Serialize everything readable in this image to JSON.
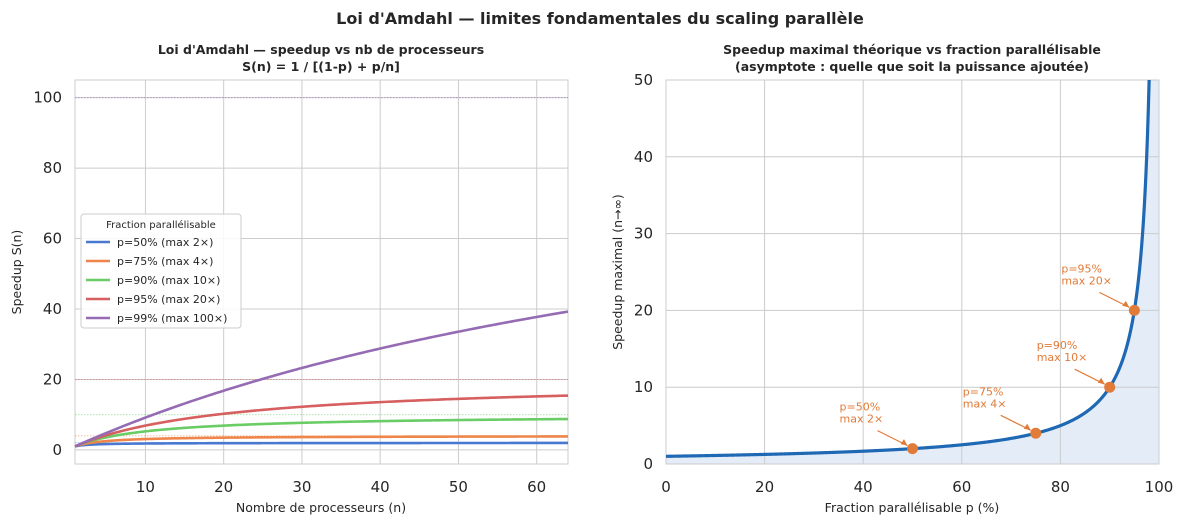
{
  "suptitle": "Loi d'Amdahl — limites fondamentales du scaling parallèle",
  "chart_data": [
    {
      "type": "line",
      "title_line1": "Loi d'Amdahl — speedup vs nb de processeurs",
      "title_line2": "S(n) = 1 / [(1-p) + p/n]",
      "xlabel": "Nombre de processeurs (n)",
      "ylabel": "Speedup S(n)",
      "xlim": [
        1,
        64
      ],
      "ylim": [
        -4,
        105
      ],
      "xticks": [
        10,
        20,
        30,
        40,
        50,
        60
      ],
      "yticks": [
        0,
        20,
        40,
        60,
        80,
        100
      ],
      "legend_title": "Fraction parallélisable",
      "legend_position": "center-left",
      "series": [
        {
          "name": "p=50% (max 2×)",
          "p": 0.5,
          "asymptote": 2,
          "color": "#4878d0"
        },
        {
          "name": "p=75% (max 4×)",
          "p": 0.75,
          "asymptote": 4,
          "color": "#ee854a"
        },
        {
          "name": "p=90% (max 10×)",
          "p": 0.9,
          "asymptote": 10,
          "color": "#6acc64"
        },
        {
          "name": "p=95% (max 20×)",
          "p": 0.95,
          "asymptote": 20,
          "color": "#d65f5f"
        },
        {
          "name": "p=99% (max 100×)",
          "p": 0.99,
          "asymptote": 100,
          "color": "#956cb4"
        }
      ]
    },
    {
      "type": "line",
      "title_line1": "Speedup maximal théorique vs fraction parallélisable",
      "title_line2": "(asymptote : quelle que soit la puissance ajoutée)",
      "xlabel": "Fraction parallélisable p (%)",
      "ylabel": "Speedup maximal (n→∞)",
      "xlim": [
        0,
        100
      ],
      "ylim": [
        0,
        50
      ],
      "xticks": [
        0,
        20,
        40,
        60,
        80,
        100
      ],
      "yticks": [
        0,
        10,
        20,
        30,
        40,
        50
      ],
      "color": "#1f68b4",
      "fill_color": "#e3ecf7",
      "points": [
        {
          "x": 50,
          "y": 2,
          "label1": "p=50%",
          "label2": "max 2×"
        },
        {
          "x": 75,
          "y": 4,
          "label1": "p=75%",
          "label2": "max 4×"
        },
        {
          "x": 90,
          "y": 10,
          "label1": "p=90%",
          "label2": "max 10×"
        },
        {
          "x": 95,
          "y": 20,
          "label1": "p=95%",
          "label2": "max 20×"
        }
      ],
      "point_color": "#e07b39"
    }
  ]
}
